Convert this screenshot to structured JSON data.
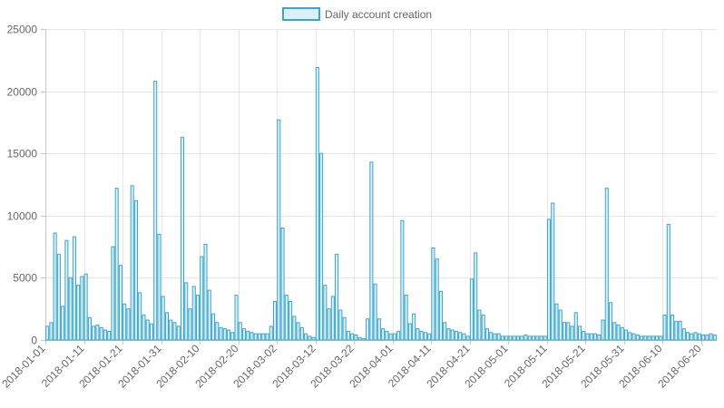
{
  "chart_data": {
    "type": "bar",
    "title": "",
    "xlabel": "",
    "ylabel": "",
    "ylim": [
      0,
      25000
    ],
    "yticks": [
      0,
      5000,
      10000,
      15000,
      20000,
      25000
    ],
    "grid": true,
    "legend": {
      "position": "top-center",
      "entries": [
        "Daily account creation"
      ]
    },
    "x_start": "2018-01-01",
    "x_ticks": [
      "2018-01-01",
      "2018-01-11",
      "2018-01-21",
      "2018-01-31",
      "2018-02-10",
      "2018-02-20",
      "2018-03-02",
      "2018-03-12",
      "2018-03-22",
      "2018-04-01",
      "2018-04-11",
      "2018-04-21",
      "2018-05-01",
      "2018-05-11",
      "2018-05-21",
      "2018-05-31",
      "2018-06-10",
      "2018-06-20"
    ],
    "colors": {
      "bar_fill": "#dbeefc",
      "bar_stroke": "#3aa6c9"
    },
    "series": [
      {
        "name": "Daily account creation",
        "values": [
          1100,
          1400,
          8600,
          6900,
          2700,
          8000,
          5000,
          8300,
          4400,
          5100,
          5300,
          1800,
          1100,
          1200,
          1000,
          800,
          700,
          7500,
          12200,
          6000,
          2900,
          2500,
          12400,
          11200,
          3800,
          2000,
          1600,
          1300,
          20800,
          8500,
          3500,
          2200,
          1600,
          1400,
          1100,
          16300,
          4600,
          2500,
          4300,
          3600,
          6700,
          7700,
          4000,
          2100,
          1400,
          1000,
          900,
          800,
          600,
          3600,
          1400,
          900,
          700,
          600,
          500,
          500,
          500,
          500,
          1100,
          3100,
          17700,
          9000,
          3600,
          3100,
          1900,
          1400,
          1000,
          500,
          300,
          200,
          21900,
          15000,
          4400,
          2500,
          3500,
          6900,
          2400,
          1800,
          700,
          500,
          400,
          200,
          100,
          1700,
          14300,
          4500,
          1700,
          900,
          700,
          500,
          500,
          700,
          9600,
          3600,
          1300,
          2100,
          900,
          700,
          600,
          500,
          7400,
          6500,
          3900,
          1400,
          900,
          800,
          700,
          600,
          500,
          300,
          4900,
          7000,
          2400,
          2000,
          900,
          600,
          500,
          500,
          300,
          300,
          300,
          300,
          300,
          300,
          400,
          300,
          300,
          300,
          300,
          300,
          9700,
          11000,
          2900,
          2400,
          1400,
          1400,
          1100,
          2200,
          1100,
          700,
          500,
          500,
          500,
          400,
          1600,
          12200,
          3000,
          1400,
          1200,
          1000,
          800,
          600,
          500,
          400,
          300,
          300,
          300,
          300,
          300,
          300,
          2000,
          9300,
          2000,
          1500,
          1500,
          900,
          600,
          500,
          600,
          500,
          400,
          400,
          500,
          400
        ]
      }
    ]
  }
}
